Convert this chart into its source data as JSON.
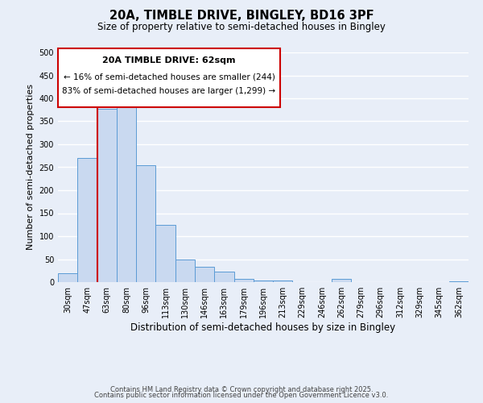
{
  "title": "20A, TIMBLE DRIVE, BINGLEY, BD16 3PF",
  "subtitle": "Size of property relative to semi-detached houses in Bingley",
  "xlabel": "Distribution of semi-detached houses by size in Bingley",
  "ylabel": "Number of semi-detached properties",
  "bin_labels": [
    "30sqm",
    "47sqm",
    "63sqm",
    "80sqm",
    "96sqm",
    "113sqm",
    "130sqm",
    "146sqm",
    "163sqm",
    "179sqm",
    "196sqm",
    "213sqm",
    "229sqm",
    "246sqm",
    "262sqm",
    "279sqm",
    "296sqm",
    "312sqm",
    "329sqm",
    "345sqm",
    "362sqm"
  ],
  "bar_heights": [
    20,
    270,
    378,
    393,
    254,
    125,
    50,
    33,
    22,
    7,
    3,
    4,
    0,
    0,
    7,
    0,
    0,
    0,
    0,
    0,
    2
  ],
  "bar_color": "#c9d9f0",
  "bar_edge_color": "#5b9bd5",
  "vline_x_index": 2,
  "vline_color": "#cc0000",
  "annotation_title": "20A TIMBLE DRIVE: 62sqm",
  "annotation_line1": "← 16% of semi-detached houses are smaller (244)",
  "annotation_line2": "83% of semi-detached houses are larger (1,299) →",
  "annotation_box_color": "#cc0000",
  "ylim": [
    0,
    500
  ],
  "yticks": [
    0,
    50,
    100,
    150,
    200,
    250,
    300,
    350,
    400,
    450,
    500
  ],
  "footnote1": "Contains HM Land Registry data © Crown copyright and database right 2025.",
  "footnote2": "Contains public sector information licensed under the Open Government Licence v3.0.",
  "background_color": "#e8eef8"
}
